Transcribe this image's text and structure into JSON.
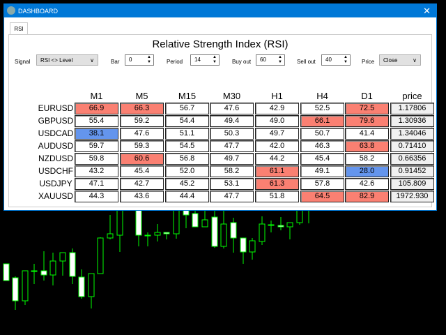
{
  "window": {
    "title": "DASHBOARD",
    "close": "✕"
  },
  "tabs": [
    {
      "label": "RSI",
      "active": true
    }
  ],
  "panel_title": "Relative Strength Index (RSI)",
  "controls": {
    "signal": {
      "label": "Signal",
      "value": "RSI <> Level"
    },
    "bar": {
      "label": "Bar",
      "value": "0"
    },
    "period": {
      "label": "Period",
      "value": "14"
    },
    "buy_out": {
      "label": "Buy out",
      "value": "60"
    },
    "sell_out": {
      "label": "Sell out",
      "value": "40"
    },
    "price": {
      "label": "Price",
      "value": "Close"
    }
  },
  "colors": {
    "high": "#fa8072",
    "low": "#6495ed",
    "candle": "#00ff00"
  },
  "columns": [
    "M1",
    "M5",
    "M15",
    "M30",
    "H1",
    "H4",
    "D1",
    "price"
  ],
  "rows": [
    {
      "symbol": "EURUSD",
      "values": [
        "66.9",
        "66.3",
        "56.7",
        "47.6",
        "42.9",
        "52.5",
        "72.5"
      ],
      "state": [
        "high",
        "high",
        "",
        "",
        "",
        "",
        "high"
      ],
      "price": "1.17806"
    },
    {
      "symbol": "GBPUSD",
      "values": [
        "55.4",
        "59.2",
        "54.4",
        "49.4",
        "49.0",
        "66.1",
        "79.6"
      ],
      "state": [
        "",
        "",
        "",
        "",
        "",
        "high",
        "high"
      ],
      "price": "1.30936"
    },
    {
      "symbol": "USDCAD",
      "values": [
        "38.1",
        "47.6",
        "51.1",
        "50.3",
        "49.7",
        "50.7",
        "41.4"
      ],
      "state": [
        "low",
        "",
        "",
        "",
        "",
        "",
        ""
      ],
      "price": "1.34046"
    },
    {
      "symbol": "AUDUSD",
      "values": [
        "59.7",
        "59.3",
        "54.5",
        "47.7",
        "42.0",
        "46.3",
        "63.8"
      ],
      "state": [
        "",
        "",
        "",
        "",
        "",
        "",
        "high"
      ],
      "price": "0.71410"
    },
    {
      "symbol": "NZDUSD",
      "values": [
        "59.8",
        "60.6",
        "56.8",
        "49.7",
        "44.2",
        "45.4",
        "58.2"
      ],
      "state": [
        "",
        "high",
        "",
        "",
        "",
        "",
        ""
      ],
      "price": "0.66356"
    },
    {
      "symbol": "USDCHF",
      "values": [
        "43.2",
        "45.4",
        "52.0",
        "58.2",
        "61.1",
        "49.1",
        "28.0"
      ],
      "state": [
        "",
        "",
        "",
        "",
        "high",
        "",
        "low"
      ],
      "price": "0.91452"
    },
    {
      "symbol": "USDJPY",
      "values": [
        "47.1",
        "42.7",
        "45.2",
        "53.1",
        "61.3",
        "57.8",
        "42.6"
      ],
      "state": [
        "",
        "",
        "",
        "",
        "high",
        "",
        ""
      ],
      "price": "105.809"
    },
    {
      "symbol": "XAUUSD",
      "values": [
        "44.3",
        "43.6",
        "44.4",
        "47.7",
        "51.8",
        "64.5",
        "82.9"
      ],
      "state": [
        "",
        "",
        "",
        "",
        "",
        "high",
        "high"
      ],
      "price": "1972.930"
    }
  ]
}
